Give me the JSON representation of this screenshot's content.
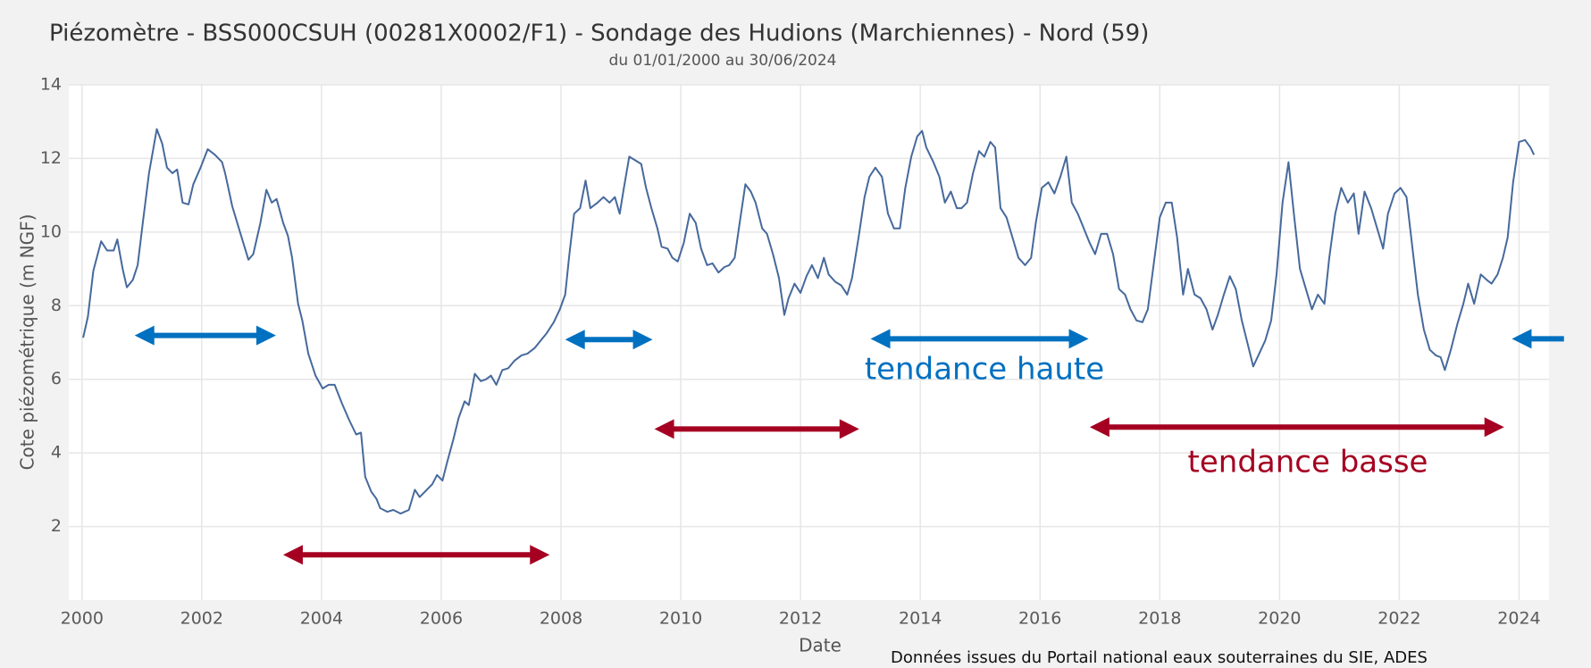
{
  "chart_data": {
    "type": "line",
    "title": "Piézomètre - BSS000CSUH (00281X0002/F1) - Sondage des Hudions (Marchiennes) - Nord (59)",
    "subtitle": "du 01/01/2000 au 30/06/2024",
    "x_label": "Date",
    "y_label": "Cote piézométrique (m NGF)",
    "source": "Données issues du Portail national eaux souterraines du SIE, ADES",
    "color": "#46699c",
    "grid": true,
    "xlim": [
      1999.78,
      2024.5
    ],
    "ylim": [
      0,
      14
    ],
    "xticks": [
      2000,
      2002,
      2004,
      2006,
      2008,
      2010,
      2012,
      2014,
      2016,
      2018,
      2020,
      2022,
      2024
    ],
    "yticks": [
      2,
      4,
      6,
      8,
      10,
      12,
      14
    ],
    "x": [
      2000.02,
      2000.1,
      2000.19,
      2000.32,
      2000.42,
      2000.53,
      2000.59,
      2000.68,
      2000.75,
      2000.85,
      2000.93,
      2001.02,
      2001.12,
      2001.25,
      2001.34,
      2001.42,
      2001.51,
      2001.59,
      2001.68,
      2001.78,
      2001.86,
      2001.98,
      2002.1,
      2002.22,
      2002.34,
      2002.39,
      2002.51,
      2002.64,
      2002.78,
      2002.86,
      2002.98,
      2003.08,
      2003.17,
      2003.25,
      2003.36,
      2003.44,
      2003.51,
      2003.61,
      2003.68,
      2003.78,
      2003.9,
      2004.02,
      2004.12,
      2004.22,
      2004.34,
      2004.46,
      2004.58,
      2004.66,
      2004.73,
      2004.83,
      2004.92,
      2004.98,
      2005.1,
      2005.2,
      2005.32,
      2005.46,
      2005.56,
      2005.64,
      2005.76,
      2005.85,
      2005.93,
      2006.02,
      2006.1,
      2006.2,
      2006.29,
      2006.39,
      2006.46,
      2006.56,
      2006.66,
      2006.75,
      2006.83,
      2006.92,
      2007.02,
      2007.12,
      2007.22,
      2007.34,
      2007.44,
      2007.56,
      2007.66,
      2007.76,
      2007.88,
      2007.98,
      2008.07,
      2008.14,
      2008.22,
      2008.32,
      2008.41,
      2008.49,
      2008.61,
      2008.71,
      2008.81,
      2008.9,
      2008.98,
      2009.05,
      2009.14,
      2009.24,
      2009.34,
      2009.42,
      2009.51,
      2009.61,
      2009.68,
      2009.78,
      2009.86,
      2009.95,
      2010.05,
      2010.15,
      2010.25,
      2010.34,
      2010.44,
      2010.53,
      2010.63,
      2010.73,
      2010.81,
      2010.9,
      2010.98,
      2011.08,
      2011.17,
      2011.25,
      2011.36,
      2011.44,
      2011.54,
      2011.64,
      2011.73,
      2011.8,
      2011.9,
      2012.0,
      2012.1,
      2012.19,
      2012.29,
      2012.39,
      2012.47,
      2012.58,
      2012.68,
      2012.78,
      2012.86,
      2012.97,
      2013.07,
      2013.15,
      2013.25,
      2013.36,
      2013.46,
      2013.56,
      2013.66,
      2013.75,
      2013.85,
      2013.95,
      2014.03,
      2014.1,
      2014.22,
      2014.32,
      2014.41,
      2014.51,
      2014.61,
      2014.69,
      2014.78,
      2014.88,
      2014.98,
      2015.07,
      2015.17,
      2015.25,
      2015.34,
      2015.44,
      2015.54,
      2015.64,
      2015.75,
      2015.85,
      2015.93,
      2016.03,
      2016.14,
      2016.24,
      2016.34,
      2016.44,
      2016.53,
      2016.63,
      2016.73,
      2016.83,
      2016.92,
      2017.02,
      2017.12,
      2017.22,
      2017.32,
      2017.42,
      2017.51,
      2017.61,
      2017.71,
      2017.8,
      2017.9,
      2018.0,
      2018.1,
      2018.2,
      2018.29,
      2018.39,
      2018.47,
      2018.58,
      2018.68,
      2018.78,
      2018.88,
      2018.97,
      2019.07,
      2019.17,
      2019.27,
      2019.37,
      2019.47,
      2019.56,
      2019.66,
      2019.76,
      2019.86,
      2019.95,
      2020.05,
      2020.15,
      2020.24,
      2020.34,
      2020.44,
      2020.54,
      2020.64,
      2020.75,
      2020.83,
      2020.93,
      2021.03,
      2021.14,
      2021.24,
      2021.32,
      2021.42,
      2021.53,
      2021.63,
      2021.73,
      2021.81,
      2021.92,
      2022.02,
      2022.12,
      2022.22,
      2022.31,
      2022.41,
      2022.51,
      2022.61,
      2022.69,
      2022.76,
      2022.86,
      2022.97,
      2023.07,
      2023.15,
      2023.25,
      2023.36,
      2023.46,
      2023.54,
      2023.64,
      2023.73,
      2023.81,
      2023.9,
      2024.0,
      2024.1,
      2024.19,
      2024.25
    ],
    "values": [
      7.13,
      7.7,
      8.95,
      9.75,
      9.5,
      9.5,
      9.8,
      9.0,
      8.5,
      8.7,
      9.1,
      10.3,
      11.6,
      12.8,
      12.4,
      11.75,
      11.6,
      11.7,
      10.8,
      10.75,
      11.3,
      11.75,
      12.25,
      12.1,
      11.9,
      11.6,
      10.7,
      10.0,
      9.25,
      9.4,
      10.25,
      11.15,
      10.8,
      10.9,
      10.25,
      9.9,
      9.3,
      8.05,
      7.6,
      6.7,
      6.1,
      5.75,
      5.85,
      5.85,
      5.35,
      4.9,
      4.5,
      4.55,
      3.35,
      2.95,
      2.75,
      2.5,
      2.4,
      2.45,
      2.35,
      2.45,
      3.0,
      2.8,
      3.0,
      3.15,
      3.4,
      3.25,
      3.75,
      4.35,
      4.95,
      5.4,
      5.3,
      6.15,
      5.95,
      6.0,
      6.1,
      5.85,
      6.25,
      6.3,
      6.5,
      6.65,
      6.7,
      6.85,
      7.05,
      7.25,
      7.55,
      7.9,
      8.3,
      9.4,
      10.5,
      10.65,
      11.4,
      10.65,
      10.8,
      10.95,
      10.8,
      10.95,
      10.5,
      11.2,
      12.05,
      11.95,
      11.85,
      11.2,
      10.65,
      10.1,
      9.6,
      9.55,
      9.3,
      9.2,
      9.7,
      10.5,
      10.25,
      9.55,
      9.1,
      9.15,
      8.9,
      9.05,
      9.1,
      9.3,
      10.2,
      11.3,
      11.1,
      10.8,
      10.1,
      9.95,
      9.4,
      8.75,
      7.75,
      8.2,
      8.6,
      8.35,
      8.8,
      9.1,
      8.75,
      9.3,
      8.85,
      8.65,
      8.55,
      8.3,
      8.75,
      9.85,
      10.95,
      11.5,
      11.75,
      11.5,
      10.5,
      10.1,
      10.1,
      11.2,
      12.05,
      12.6,
      12.75,
      12.3,
      11.9,
      11.5,
      10.8,
      11.1,
      10.65,
      10.65,
      10.8,
      11.6,
      12.2,
      12.05,
      12.45,
      12.3,
      10.65,
      10.4,
      9.85,
      9.3,
      9.1,
      9.3,
      10.25,
      11.2,
      11.35,
      11.05,
      11.5,
      12.05,
      10.8,
      10.5,
      10.1,
      9.7,
      9.4,
      9.95,
      9.95,
      9.4,
      8.45,
      8.3,
      7.9,
      7.6,
      7.55,
      7.9,
      9.15,
      10.4,
      10.8,
      10.8,
      9.85,
      8.3,
      9.0,
      8.3,
      8.2,
      7.9,
      7.35,
      7.75,
      8.3,
      8.8,
      8.45,
      7.6,
      6.95,
      6.35,
      6.7,
      7.05,
      7.6,
      8.85,
      10.8,
      11.9,
      10.5,
      9.0,
      8.45,
      7.9,
      8.3,
      8.05,
      9.3,
      10.5,
      11.2,
      10.8,
      11.05,
      9.95,
      11.1,
      10.65,
      10.1,
      9.55,
      10.5,
      11.05,
      11.2,
      10.95,
      9.55,
      8.3,
      7.35,
      6.8,
      6.65,
      6.6,
      6.25,
      6.8,
      7.5,
      8.05,
      8.6,
      8.05,
      8.85,
      8.7,
      8.6,
      8.85,
      9.3,
      9.85,
      11.35,
      12.45,
      12.5,
      12.3,
      12.1
    ],
    "arrows": [
      {
        "x": [
          2000.88,
          2003.24
        ],
        "y": 7.19,
        "color": "#0070c0",
        "heads": "both"
      },
      {
        "x": [
          2008.07,
          2009.53
        ],
        "y": 7.08,
        "color": "#0070c0",
        "heads": "both"
      },
      {
        "x": [
          2013.17,
          2016.81
        ],
        "y": 7.1,
        "color": "#0070c0",
        "heads": "both"
      },
      {
        "x": [
          2023.88,
          2024.75
        ],
        "y": 7.1,
        "color": "#0070c0",
        "heads": "start"
      },
      {
        "x": [
          2003.36,
          2007.81
        ],
        "y": 1.23,
        "color": "#a50021",
        "heads": "both"
      },
      {
        "x": [
          2009.56,
          2012.98
        ],
        "y": 4.65,
        "color": "#a50021",
        "heads": "both"
      },
      {
        "x": [
          2016.83,
          2023.75
        ],
        "y": 4.7,
        "color": "#a50021",
        "heads": "both"
      }
    ],
    "annotations": [
      {
        "text": "tendance haute",
        "color": "#0070c0"
      },
      {
        "text": "tendance basse",
        "color": "#a50021"
      }
    ]
  }
}
